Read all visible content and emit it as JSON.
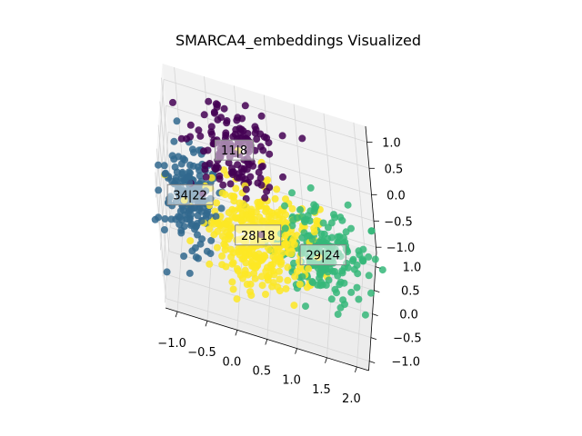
{
  "chart_data": {
    "type": "scatter",
    "projection": "3d",
    "title": "SMARCA4_embeddings Visualized",
    "xlabel": "",
    "ylabel": "",
    "zlabel": "",
    "xticks": [
      "−1.0",
      "−0.5",
      "0.0",
      "0.5",
      "1.0",
      "1.5",
      "2.0"
    ],
    "yticks": [
      "−1.0",
      "−0.5",
      "0.0",
      "0.5",
      "1.0"
    ],
    "zticks": [
      "−1.0",
      "−0.5",
      "0.0",
      "0.5",
      "1.0"
    ],
    "xlim": [
      -1.2,
      2.2
    ],
    "ylim": [
      -1.2,
      1.3
    ],
    "zlim": [
      -1.1,
      1.3
    ],
    "grid": true,
    "colormap": "viridis",
    "clusters": [
      {
        "label": "11|8",
        "color": "#440154",
        "center": [
          0.0,
          0.55,
          0.75
        ],
        "spread": [
          0.35,
          0.35,
          0.3
        ],
        "n": 160
      },
      {
        "label": "34|22",
        "color": "#31688e",
        "center": [
          -0.8,
          0.35,
          -0.2
        ],
        "spread": [
          0.25,
          0.35,
          0.35
        ],
        "n": 190
      },
      {
        "label": "28|18",
        "color": "#fde725",
        "center": [
          0.35,
          0.0,
          -0.25
        ],
        "spread": [
          0.45,
          0.45,
          0.3
        ],
        "n": 380
      },
      {
        "label": "29|24",
        "color": "#35b779",
        "center": [
          1.45,
          -0.1,
          -0.15
        ],
        "spread": [
          0.35,
          0.3,
          0.3
        ],
        "n": 200
      }
    ]
  }
}
